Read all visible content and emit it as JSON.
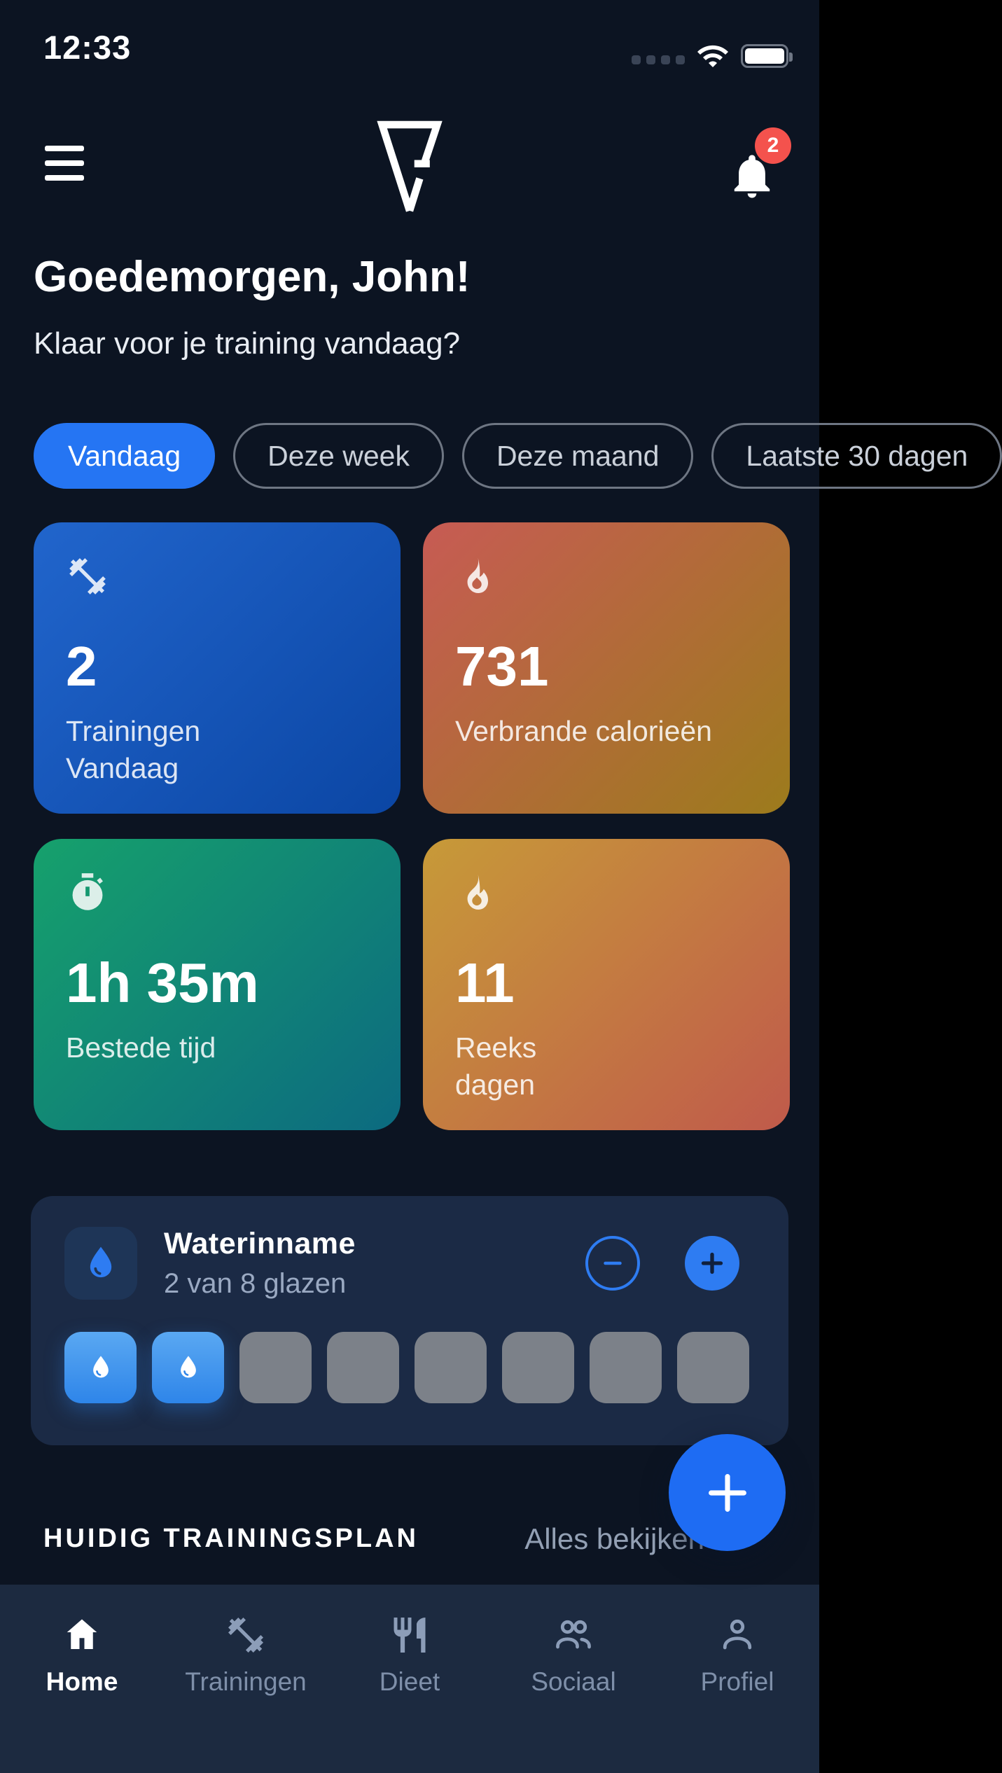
{
  "colors": {
    "background": "#0C1422",
    "nav_background": "#1C2A40",
    "water_card_background": "#1B2A45",
    "accent_blue": "#2575F3",
    "water_button_blue": "#2E7CF2",
    "fab_blue": "#1E6CF3",
    "badge_red": "#F4524D",
    "glass_empty_gray": "#7C8189",
    "stat_blue_from": "#2165CC",
    "stat_blue_to": "#0B46A4",
    "stat_calories_from": "#C75B54",
    "stat_calories_to": "#9C7B1C",
    "stat_time_from": "#16A16C",
    "stat_time_to": "#0C6A80",
    "stat_streak_from": "#C79A38",
    "stat_streak_to": "#C05A4B"
  },
  "status_bar": {
    "time": "12:33"
  },
  "header": {
    "notification_count": "2"
  },
  "greeting": {
    "title": "Goedemorgen, John!",
    "subtitle": "Klaar voor je training vandaag?"
  },
  "filters": {
    "chips": [
      {
        "label": "Vandaag",
        "active": true
      },
      {
        "label": "Deze week",
        "active": false
      },
      {
        "label": "Deze maand",
        "active": false
      },
      {
        "label": "Laatste 30 dagen",
        "active": false
      }
    ]
  },
  "stats": {
    "cards": [
      {
        "icon": "dumbbell-icon",
        "value": "2",
        "label": "Trainingen\nVandaag"
      },
      {
        "icon": "flame-icon",
        "value": "731",
        "label": "Verbrande calorieën"
      },
      {
        "icon": "stopwatch-icon",
        "value": "1h 35m",
        "label": "Bestede tijd"
      },
      {
        "icon": "flame-icon",
        "value": "11",
        "label": "Reeks\ndagen"
      }
    ]
  },
  "water": {
    "title": "Waterinname",
    "subtitle": "2 van 8 glazen",
    "glasses_total": 8,
    "glasses_filled": 2
  },
  "training_plan": {
    "section_title": "HUIDIG TRAININGSPLAN",
    "view_all_label": "Alles bekijken"
  },
  "nav": {
    "items": [
      {
        "label": "Home",
        "icon": "home-icon",
        "active": true
      },
      {
        "label": "Trainingen",
        "icon": "dumbbell-icon",
        "active": false
      },
      {
        "label": "Dieet",
        "icon": "cutlery-icon",
        "active": false
      },
      {
        "label": "Sociaal",
        "icon": "people-icon",
        "active": false
      },
      {
        "label": "Profiel",
        "icon": "person-icon",
        "active": false
      }
    ]
  }
}
